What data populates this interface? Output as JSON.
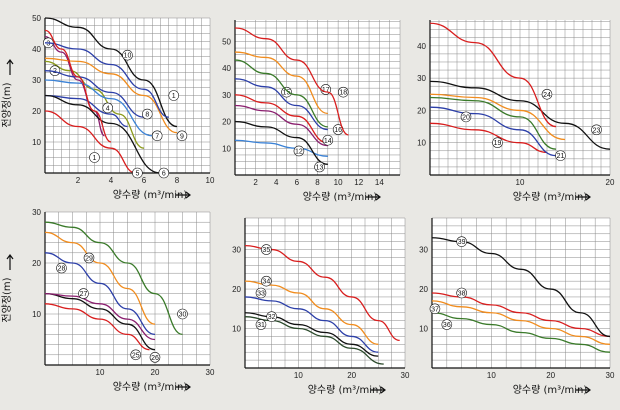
{
  "y_axis_label": "전양정(m)",
  "colors": {
    "black": "#111111",
    "red": "#d81e1e",
    "orange": "#f08c1e",
    "blue": "#2c3fa8",
    "green": "#3a7a2a",
    "purple": "#8a1e6e",
    "olive": "#8c9a1c",
    "lightblue": "#3b82d6",
    "darkgreen": "#2c4a2c"
  },
  "chart_data": [
    {
      "type": "line",
      "xlabel": "양수량 (m³/min)",
      "ylabel": "전양정(m)",
      "xlim": [
        0,
        10
      ],
      "ylim": [
        0,
        50
      ],
      "xticks": [
        2,
        4,
        6,
        8,
        10
      ],
      "yticks": [
        10,
        20,
        30,
        40,
        50
      ],
      "series": [
        {
          "name": "1",
          "color": "#111111",
          "x": [
            0,
            2,
            4,
            6,
            8
          ],
          "y": [
            50,
            47,
            40,
            30,
            15
          ],
          "label_at": [
            7.8,
            25
          ]
        },
        {
          "name": "2",
          "color": "#8c9a1c",
          "x": [
            0,
            1.5,
            3,
            4.5,
            6
          ],
          "y": [
            36,
            33,
            27,
            19,
            8
          ],
          "label_at": [
            0.6,
            33
          ]
        },
        {
          "name": "3",
          "color": "#8a1e6e",
          "x": [
            0,
            1,
            2,
            3,
            3.6
          ],
          "y": [
            44,
            39,
            30,
            20,
            12
          ],
          "label_at": [
            0.2,
            42
          ]
        },
        {
          "name": "4",
          "color": "#2c3fa8",
          "x": [
            0,
            2,
            4,
            5
          ],
          "y": [
            25,
            24,
            19,
            15
          ],
          "label_at": [
            3.8,
            21
          ]
        },
        {
          "name": "5",
          "color": "#d81e1e",
          "x": [
            0,
            2,
            4,
            5.5
          ],
          "y": [
            20,
            15,
            8,
            0
          ],
          "label_at": [
            5.6,
            0
          ]
        },
        {
          "name": "6",
          "color": "#111111",
          "x": [
            0,
            2,
            4,
            7
          ],
          "y": [
            25,
            22,
            16,
            0
          ],
          "label_at": [
            7.2,
            0
          ]
        },
        {
          "name": "7",
          "color": "#3b82d6",
          "x": [
            0,
            2,
            4,
            6.5
          ],
          "y": [
            30,
            29,
            24,
            12
          ],
          "label_at": [
            6.8,
            12
          ]
        },
        {
          "name": "8",
          "color": "#2c3fa8",
          "x": [
            0,
            2,
            4,
            6
          ],
          "y": [
            33,
            31,
            26,
            18
          ],
          "label_at": [
            6.2,
            19
          ]
        },
        {
          "name": "9",
          "color": "#f08c1e",
          "x": [
            0,
            2,
            4,
            6,
            8
          ],
          "y": [
            37,
            36,
            32,
            25,
            13
          ],
          "label_at": [
            8.3,
            12
          ]
        },
        {
          "name": "10",
          "color": "#2c3fa8",
          "x": [
            0,
            2,
            4,
            6,
            7.5
          ],
          "y": [
            42,
            40,
            35,
            27,
            18
          ],
          "label_at": [
            5,
            38
          ]
        },
        {
          "name": "1",
          "color": "#d81e1e",
          "x": [
            0,
            1,
            2,
            3,
            4
          ],
          "y": [
            46,
            40,
            31,
            20,
            10
          ],
          "label_at": [
            3,
            5
          ]
        }
      ]
    },
    {
      "type": "line",
      "xlabel": "양수량 (m³/min)",
      "ylabel": "",
      "xlim": [
        0,
        16
      ],
      "ylim": [
        0,
        58
      ],
      "xticks": [
        2,
        4,
        6,
        8,
        10,
        12,
        14
      ],
      "yticks": [
        10,
        20,
        30,
        40,
        50
      ],
      "series": [
        {
          "name": "11",
          "color": "#8a1e6e",
          "x": [
            0,
            3,
            6,
            9
          ],
          "y": [
            26,
            24,
            19,
            11
          ]
        },
        {
          "name": "12",
          "color": "#3b82d6",
          "x": [
            0,
            3,
            6,
            9
          ],
          "y": [
            13,
            12,
            10,
            7
          ],
          "label_at": [
            6.2,
            9
          ]
        },
        {
          "name": "13",
          "color": "#111111",
          "x": [
            0,
            3,
            6,
            9
          ],
          "y": [
            20,
            18,
            14,
            4
          ],
          "label_at": [
            8.2,
            3
          ]
        },
        {
          "name": "14",
          "color": "#d81e1e",
          "x": [
            0,
            3,
            6,
            9
          ],
          "y": [
            30,
            27,
            22,
            12
          ],
          "label_at": [
            9,
            13
          ]
        },
        {
          "name": "15",
          "color": "#2c3fa8",
          "x": [
            0,
            3,
            6,
            9
          ],
          "y": [
            36,
            33,
            26,
            17
          ],
          "label_at": [
            5,
            31
          ]
        },
        {
          "name": "16",
          "color": "#3a7a2a",
          "x": [
            0,
            3,
            6,
            9
          ],
          "y": [
            43,
            38,
            30,
            18
          ],
          "label_at": [
            10,
            17
          ]
        },
        {
          "name": "17",
          "color": "#f08c1e",
          "x": [
            0,
            3,
            6,
            9
          ],
          "y": [
            46,
            44,
            37,
            23
          ],
          "label_at": [
            8.8,
            32
          ]
        },
        {
          "name": "18",
          "color": "#d81e1e",
          "x": [
            0,
            3,
            6,
            9,
            11
          ],
          "y": [
            55,
            51,
            43,
            31,
            15
          ],
          "label_at": [
            10.5,
            31
          ]
        }
      ]
    },
    {
      "type": "line",
      "xlabel": "양수량 (m³/min)",
      "ylabel": "",
      "xlim": [
        0,
        20
      ],
      "ylim": [
        0,
        48
      ],
      "xticks": [
        10,
        20
      ],
      "yticks": [
        10,
        20,
        30,
        40
      ],
      "series": [
        {
          "name": "19",
          "color": "#d81e1e",
          "x": [
            0,
            5,
            10,
            13
          ],
          "y": [
            16,
            14,
            10,
            7
          ],
          "label_at": [
            7.5,
            10
          ]
        },
        {
          "name": "20",
          "color": "#2c3fa8",
          "x": [
            0,
            5,
            10,
            14
          ],
          "y": [
            21,
            19,
            14,
            6
          ],
          "label_at": [
            4,
            18
          ]
        },
        {
          "name": "21",
          "color": "#3a7a2a",
          "x": [
            0,
            5,
            10,
            14
          ],
          "y": [
            24,
            23,
            18,
            8
          ],
          "label_at": [
            14.5,
            6
          ]
        },
        {
          "name": "22",
          "color": "#f08c1e",
          "x": [
            0,
            5,
            10,
            15
          ],
          "y": [
            25,
            24,
            20,
            11
          ]
        },
        {
          "name": "23",
          "color": "#111111",
          "x": [
            0,
            5,
            10,
            15,
            20
          ],
          "y": [
            29,
            27,
            23,
            16,
            8
          ],
          "label_at": [
            18.5,
            14
          ]
        },
        {
          "name": "24",
          "color": "#d81e1e",
          "x": [
            0,
            5,
            10,
            14
          ],
          "y": [
            47,
            41,
            30,
            15
          ],
          "label_at": [
            13,
            25
          ]
        }
      ]
    },
    {
      "type": "line",
      "xlabel": "양수량 (m³/min)",
      "ylabel": "전양정(m)",
      "xlim": [
        0,
        30
      ],
      "ylim": [
        0,
        30
      ],
      "xticks": [
        10,
        20,
        30
      ],
      "yticks": [
        10,
        20,
        30
      ],
      "series": [
        {
          "name": "25",
          "color": "#d81e1e",
          "x": [
            0,
            5,
            10,
            15,
            19
          ],
          "y": [
            12,
            11,
            9,
            6,
            3
          ],
          "label_at": [
            16.5,
            2
          ]
        },
        {
          "name": "26",
          "color": "#111111",
          "x": [
            0,
            5,
            10,
            15,
            20
          ],
          "y": [
            14,
            13,
            11,
            8,
            3
          ],
          "label_at": [
            20,
            1.5
          ]
        },
        {
          "name": "27",
          "color": "#8a1e6e",
          "x": [
            0,
            5,
            10,
            15,
            20
          ],
          "y": [
            14,
            13.5,
            12,
            9,
            5
          ],
          "label_at": [
            7,
            14
          ]
        },
        {
          "name": "28",
          "color": "#2c3fa8",
          "x": [
            0,
            5,
            10,
            15,
            20
          ],
          "y": [
            22,
            20,
            16,
            11,
            6
          ],
          "label_at": [
            3,
            19
          ]
        },
        {
          "name": "29",
          "color": "#f08c1e",
          "x": [
            0,
            5,
            10,
            15,
            20
          ],
          "y": [
            26,
            24,
            20,
            15,
            8
          ],
          "label_at": [
            8,
            21
          ]
        },
        {
          "name": "30",
          "color": "#3a7a2a",
          "x": [
            0,
            5,
            10,
            15,
            20,
            25
          ],
          "y": [
            28,
            27,
            24,
            20,
            14,
            6
          ],
          "label_at": [
            25,
            10
          ]
        }
      ]
    },
    {
      "type": "line",
      "xlabel": "양수량 (m³/min)",
      "ylabel": "",
      "xlim": [
        0,
        30
      ],
      "ylim": [
        0,
        38
      ],
      "xticks": [
        10,
        20,
        30
      ],
      "yticks": [
        10,
        20,
        30
      ],
      "series": [
        {
          "name": "31",
          "color": "#2c4a2c",
          "x": [
            0,
            5,
            10,
            15,
            20,
            26
          ],
          "y": [
            13,
            12,
            10,
            8,
            5,
            1
          ],
          "label_at": [
            3,
            11
          ]
        },
        {
          "name": "32",
          "color": "#111111",
          "x": [
            0,
            5,
            10,
            15,
            20,
            25
          ],
          "y": [
            14,
            13,
            11,
            9,
            6,
            3
          ],
          "label_at": [
            5,
            13
          ]
        },
        {
          "name": "33",
          "color": "#2c3fa8",
          "x": [
            0,
            5,
            10,
            15,
            20,
            25
          ],
          "y": [
            18,
            17,
            15,
            12,
            8,
            4
          ],
          "label_at": [
            3,
            19
          ]
        },
        {
          "name": "34",
          "color": "#f08c1e",
          "x": [
            0,
            5,
            10,
            15,
            20,
            25
          ],
          "y": [
            22,
            21,
            19,
            15,
            11,
            6
          ],
          "label_at": [
            4,
            22
          ]
        },
        {
          "name": "35",
          "color": "#d81e1e",
          "x": [
            0,
            5,
            10,
            15,
            20,
            25,
            29
          ],
          "y": [
            31,
            30,
            27,
            23,
            18,
            12,
            7
          ],
          "label_at": [
            4,
            30
          ]
        }
      ]
    },
    {
      "type": "line",
      "xlabel": "양수량 (m³/min)",
      "ylabel": "",
      "xlim": [
        0,
        30
      ],
      "ylim": [
        0,
        38
      ],
      "xticks": [
        10,
        20,
        30
      ],
      "yticks": [
        10,
        20,
        30
      ],
      "series": [
        {
          "name": "36",
          "color": "#3a7a2a",
          "x": [
            0,
            5,
            10,
            15,
            20,
            25,
            30
          ],
          "y": [
            14,
            12.5,
            11,
            9,
            7.5,
            6,
            4
          ],
          "label_at": [
            2.5,
            11
          ]
        },
        {
          "name": "37",
          "color": "#f08c1e",
          "x": [
            0,
            5,
            10,
            15,
            20,
            25,
            30
          ],
          "y": [
            17,
            15.5,
            14,
            12,
            10,
            8,
            6
          ],
          "label_at": [
            0.5,
            15
          ]
        },
        {
          "name": "38",
          "color": "#d81e1e",
          "x": [
            0,
            5,
            10,
            15,
            20,
            25,
            30
          ],
          "y": [
            19,
            18,
            16,
            14,
            12,
            10,
            8
          ],
          "label_at": [
            5,
            19
          ]
        },
        {
          "name": "39",
          "color": "#111111",
          "x": [
            0,
            5,
            10,
            15,
            20,
            25,
            30
          ],
          "y": [
            33,
            32,
            29,
            25,
            20,
            14,
            8
          ],
          "label_at": [
            5,
            32
          ]
        }
      ]
    }
  ]
}
